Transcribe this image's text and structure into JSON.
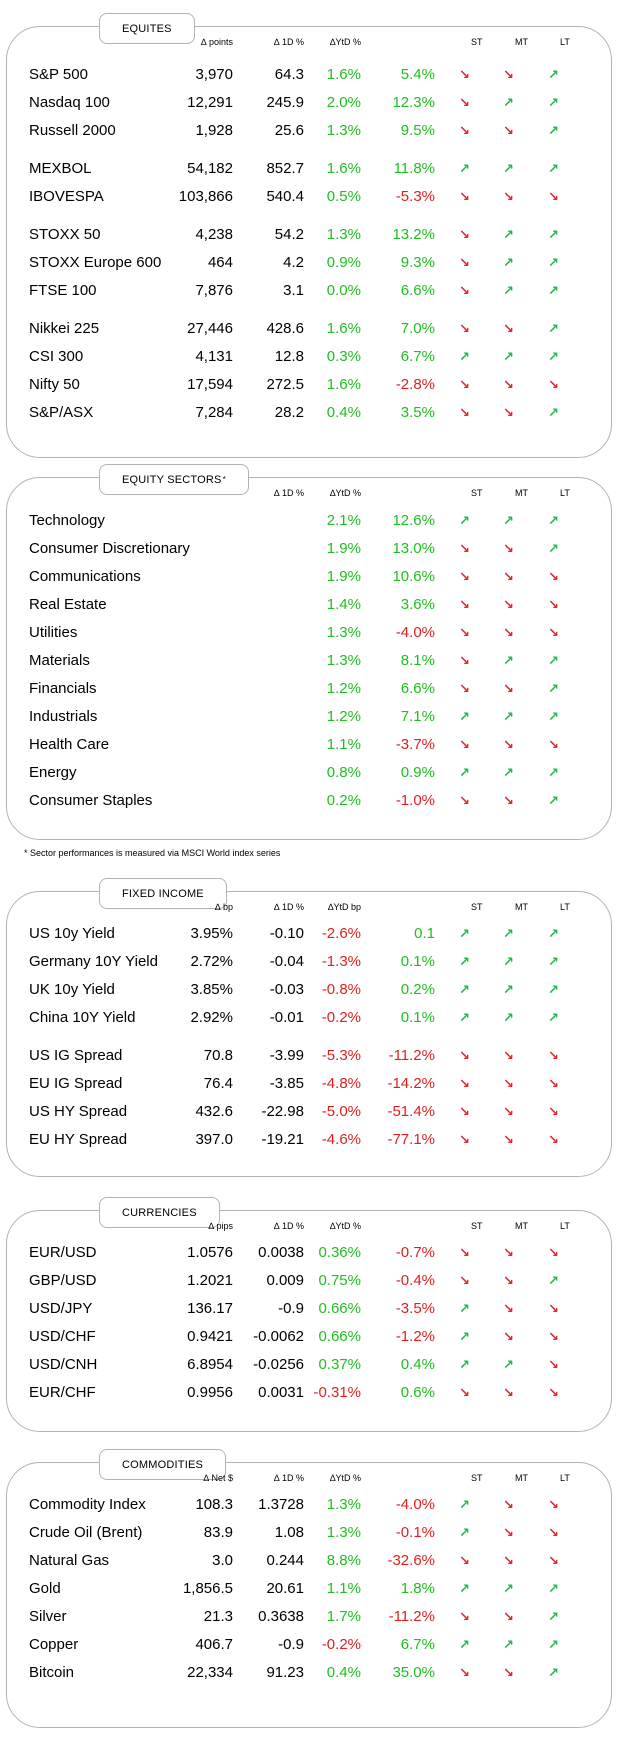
{
  "colors": {
    "positive": "#1fbf1f",
    "negative": "#e01f1f",
    "arrow_up": "#1fb84a",
    "arrow_down": "#e0262f",
    "border": "#b3b3b3"
  },
  "icons": {
    "up": "↗",
    "down": "↘"
  },
  "sections": [
    {
      "title": "EQUITES",
      "headers": [
        "",
        "",
        "∆ points",
        "∆ 1D %",
        "∆YtD %",
        "ST",
        "MT",
        "LT"
      ],
      "rows": [
        {
          "name": "S&P 500",
          "value": "3,970",
          "chg": "64.3",
          "d1": "1.6%",
          "ytd": "5.4%",
          "st": "down",
          "mt": "down",
          "lt": "up"
        },
        {
          "name": "Nasdaq 100",
          "value": "12,291",
          "chg": "245.9",
          "d1": "2.0%",
          "ytd": "12.3%",
          "st": "down",
          "mt": "up",
          "lt": "up"
        },
        {
          "name": "Russell 2000",
          "value": "1,928",
          "chg": "25.6",
          "d1": "1.3%",
          "ytd": "9.5%",
          "st": "down",
          "mt": "down",
          "lt": "up"
        },
        {
          "name": "MEXBOL",
          "value": "54,182",
          "chg": "852.7",
          "d1": "1.6%",
          "ytd": "11.8%",
          "st": "up",
          "mt": "up",
          "lt": "up"
        },
        {
          "name": "IBOVESPA",
          "value": "103,866",
          "chg": "540.4",
          "d1": "0.5%",
          "ytd": "-5.3%",
          "st": "down",
          "mt": "down",
          "lt": "down"
        },
        {
          "name": "STOXX 50",
          "value": "4,238",
          "chg": "54.2",
          "d1": "1.3%",
          "ytd": "13.2%",
          "st": "down",
          "mt": "up",
          "lt": "up"
        },
        {
          "name": "STOXX Europe 600",
          "value": "464",
          "chg": "4.2",
          "d1": "0.9%",
          "ytd": "9.3%",
          "st": "down",
          "mt": "up",
          "lt": "up"
        },
        {
          "name": "FTSE 100",
          "value": "7,876",
          "chg": "3.1",
          "d1": "0.0%",
          "ytd": "6.6%",
          "st": "down",
          "mt": "up",
          "lt": "up"
        },
        {
          "name": "Nikkei 225",
          "value": "27,446",
          "chg": "428.6",
          "d1": "1.6%",
          "ytd": "7.0%",
          "st": "down",
          "mt": "down",
          "lt": "up"
        },
        {
          "name": "CSI 300",
          "value": "4,131",
          "chg": "12.8",
          "d1": "0.3%",
          "ytd": "6.7%",
          "st": "up",
          "mt": "up",
          "lt": "up"
        },
        {
          "name": "Nifty  50",
          "value": "17,594",
          "chg": "272.5",
          "d1": "1.6%",
          "ytd": "-2.8%",
          "st": "down",
          "mt": "down",
          "lt": "down"
        },
        {
          "name": "S&P/ASX",
          "value": "7,284",
          "chg": "28.2",
          "d1": "0.4%",
          "ytd": "3.5%",
          "st": "down",
          "mt": "down",
          "lt": "up"
        }
      ]
    },
    {
      "title": "EQUITY SECTORS",
      "title_sup": "*",
      "headers": [
        "",
        "",
        "",
        "∆ 1D %",
        "∆YtD %",
        "ST",
        "MT",
        "LT"
      ],
      "rows": [
        {
          "name": "Technology",
          "value": "",
          "chg": "",
          "d1": "2.1%",
          "ytd": "12.6%",
          "st": "up",
          "mt": "up",
          "lt": "up"
        },
        {
          "name": "Consumer Discretionary",
          "value": "",
          "chg": "",
          "d1": "1.9%",
          "ytd": "13.0%",
          "st": "down",
          "mt": "down",
          "lt": "up"
        },
        {
          "name": "Communications",
          "value": "",
          "chg": "",
          "d1": "1.9%",
          "ytd": "10.6%",
          "st": "down",
          "mt": "down",
          "lt": "down"
        },
        {
          "name": "Real Estate",
          "value": "",
          "chg": "",
          "d1": "1.4%",
          "ytd": "3.6%",
          "st": "down",
          "mt": "down",
          "lt": "down"
        },
        {
          "name": "Utilities",
          "value": "",
          "chg": "",
          "d1": "1.3%",
          "ytd": "-4.0%",
          "st": "down",
          "mt": "down",
          "lt": "down"
        },
        {
          "name": "Materials",
          "value": "",
          "chg": "",
          "d1": "1.3%",
          "ytd": "8.1%",
          "st": "down",
          "mt": "up",
          "lt": "up"
        },
        {
          "name": "Financials",
          "value": "",
          "chg": "",
          "d1": "1.2%",
          "ytd": "6.6%",
          "st": "down",
          "mt": "down",
          "lt": "up"
        },
        {
          "name": "Industrials",
          "value": "",
          "chg": "",
          "d1": "1.2%",
          "ytd": "7.1%",
          "st": "up",
          "mt": "up",
          "lt": "up"
        },
        {
          "name": "Health Care",
          "value": "",
          "chg": "",
          "d1": "1.1%",
          "ytd": "-3.7%",
          "st": "down",
          "mt": "down",
          "lt": "down"
        },
        {
          "name": "Energy",
          "value": "",
          "chg": "",
          "d1": "0.8%",
          "ytd": "0.9%",
          "st": "up",
          "mt": "up",
          "lt": "up"
        },
        {
          "name": "Consumer Staples",
          "value": "",
          "chg": "",
          "d1": "0.2%",
          "ytd": "-1.0%",
          "st": "down",
          "mt": "down",
          "lt": "up"
        }
      ],
      "footnote": "* Sector performances is measured via MSCI World index series"
    },
    {
      "title": "FIXED INCOME",
      "headers": [
        "",
        "",
        "∆ bp",
        "∆ 1D %",
        "∆YtD bp",
        "ST",
        "MT",
        "LT"
      ],
      "rows": [
        {
          "name": "US 10y Yield",
          "value": "3.95%",
          "chg": "-0.10",
          "d1": "-2.6%",
          "ytd": "0.1",
          "st": "up",
          "mt": "up",
          "lt": "up"
        },
        {
          "name": "Germany 10Y Yield",
          "value": "2.72%",
          "chg": "-0.04",
          "d1": "-1.3%",
          "ytd": "0.1%",
          "st": "up",
          "mt": "up",
          "lt": "up"
        },
        {
          "name": "UK 10y Yield",
          "value": "3.85%",
          "chg": "-0.03",
          "d1": "-0.8%",
          "ytd": "0.2%",
          "st": "up",
          "mt": "up",
          "lt": "up"
        },
        {
          "name": "China 10Y Yield",
          "value": "2.92%",
          "chg": "-0.01",
          "d1": "-0.2%",
          "ytd": "0.1%",
          "st": "up",
          "mt": "up",
          "lt": "up"
        },
        {
          "name": "US IG Spread",
          "value": "70.8",
          "chg": "-3.99",
          "d1": "-5.3%",
          "ytd": "-11.2%",
          "st": "down",
          "mt": "down",
          "lt": "down"
        },
        {
          "name": "EU IG Spread",
          "value": "76.4",
          "chg": "-3.85",
          "d1": "-4.8%",
          "ytd": "-14.2%",
          "st": "down",
          "mt": "down",
          "lt": "down"
        },
        {
          "name": "US HY Spread",
          "value": "432.6",
          "chg": "-22.98",
          "d1": "-5.0%",
          "ytd": "-51.4%",
          "st": "down",
          "mt": "down",
          "lt": "down"
        },
        {
          "name": "EU HY Spread",
          "value": "397.0",
          "chg": "-19.21",
          "d1": "-4.6%",
          "ytd": "-77.1%",
          "st": "down",
          "mt": "down",
          "lt": "down"
        }
      ]
    },
    {
      "title": "CURRENCIES",
      "headers": [
        "",
        "",
        "∆ pips",
        "∆ 1D %",
        "∆YtD %",
        "ST",
        "MT",
        "LT"
      ],
      "rows": [
        {
          "name": "EUR/USD",
          "value": "1.0576",
          "chg": "0.0038",
          "d1": "0.36%",
          "ytd": "-0.7%",
          "st": "down",
          "mt": "down",
          "lt": "down"
        },
        {
          "name": "GBP/USD",
          "value": "1.2021",
          "chg": "0.009",
          "d1": "0.75%",
          "ytd": "-0.4%",
          "st": "down",
          "mt": "down",
          "lt": "up"
        },
        {
          "name": "USD/JPY",
          "value": "136.17",
          "chg": "-0.9",
          "d1": "0.66%",
          "ytd": "-3.5%",
          "st": "up",
          "mt": "down",
          "lt": "down"
        },
        {
          "name": "USD/CHF",
          "value": "0.9421",
          "chg": "-0.0062",
          "d1": "0.66%",
          "ytd": "-1.2%",
          "st": "up",
          "mt": "down",
          "lt": "down"
        },
        {
          "name": "USD/CNH",
          "value": "6.8954",
          "chg": "-0.0256",
          "d1": "0.37%",
          "ytd": "0.4%",
          "st": "up",
          "mt": "up",
          "lt": "down"
        },
        {
          "name": "EUR/CHF",
          "value": "0.9956",
          "chg": "0.0031",
          "d1": "-0.31%",
          "ytd": "0.6%",
          "st": "down",
          "mt": "down",
          "lt": "down"
        }
      ]
    },
    {
      "title": "COMMODITIES",
      "headers": [
        "",
        "",
        "∆ Net $",
        "∆ 1D %",
        "∆YtD %",
        "ST",
        "MT",
        "LT"
      ],
      "rows": [
        {
          "name": "Commodity Index",
          "value": "108.3",
          "chg": "1.3728",
          "d1": "1.3%",
          "ytd": "-4.0%",
          "st": "up",
          "mt": "down",
          "lt": "down"
        },
        {
          "name": "Crude Oil (Brent)",
          "value": "83.9",
          "chg": "1.08",
          "d1": "1.3%",
          "ytd": "-0.1%",
          "st": "up",
          "mt": "down",
          "lt": "down"
        },
        {
          "name": "Natural Gas",
          "value": "3.0",
          "chg": "0.244",
          "d1": "8.8%",
          "ytd": "-32.6%",
          "st": "down",
          "mt": "down",
          "lt": "down"
        },
        {
          "name": "Gold",
          "value": "1,856.5",
          "chg": "20.61",
          "d1": "1.1%",
          "ytd": "1.8%",
          "st": "up",
          "mt": "up",
          "lt": "up"
        },
        {
          "name": "Silver",
          "value": "21.3",
          "chg": "0.3638",
          "d1": "1.7%",
          "ytd": "-11.2%",
          "st": "down",
          "mt": "down",
          "lt": "up"
        },
        {
          "name": "Copper",
          "value": "406.7",
          "chg": "-0.9",
          "d1": "-0.2%",
          "ytd": "6.7%",
          "st": "up",
          "mt": "up",
          "lt": "up"
        },
        {
          "name": "Bitcoin",
          "value": "22,334",
          "chg": "91.23",
          "d1": "0.4%",
          "ytd": "35.0%",
          "st": "down",
          "mt": "down",
          "lt": "up"
        }
      ]
    }
  ]
}
